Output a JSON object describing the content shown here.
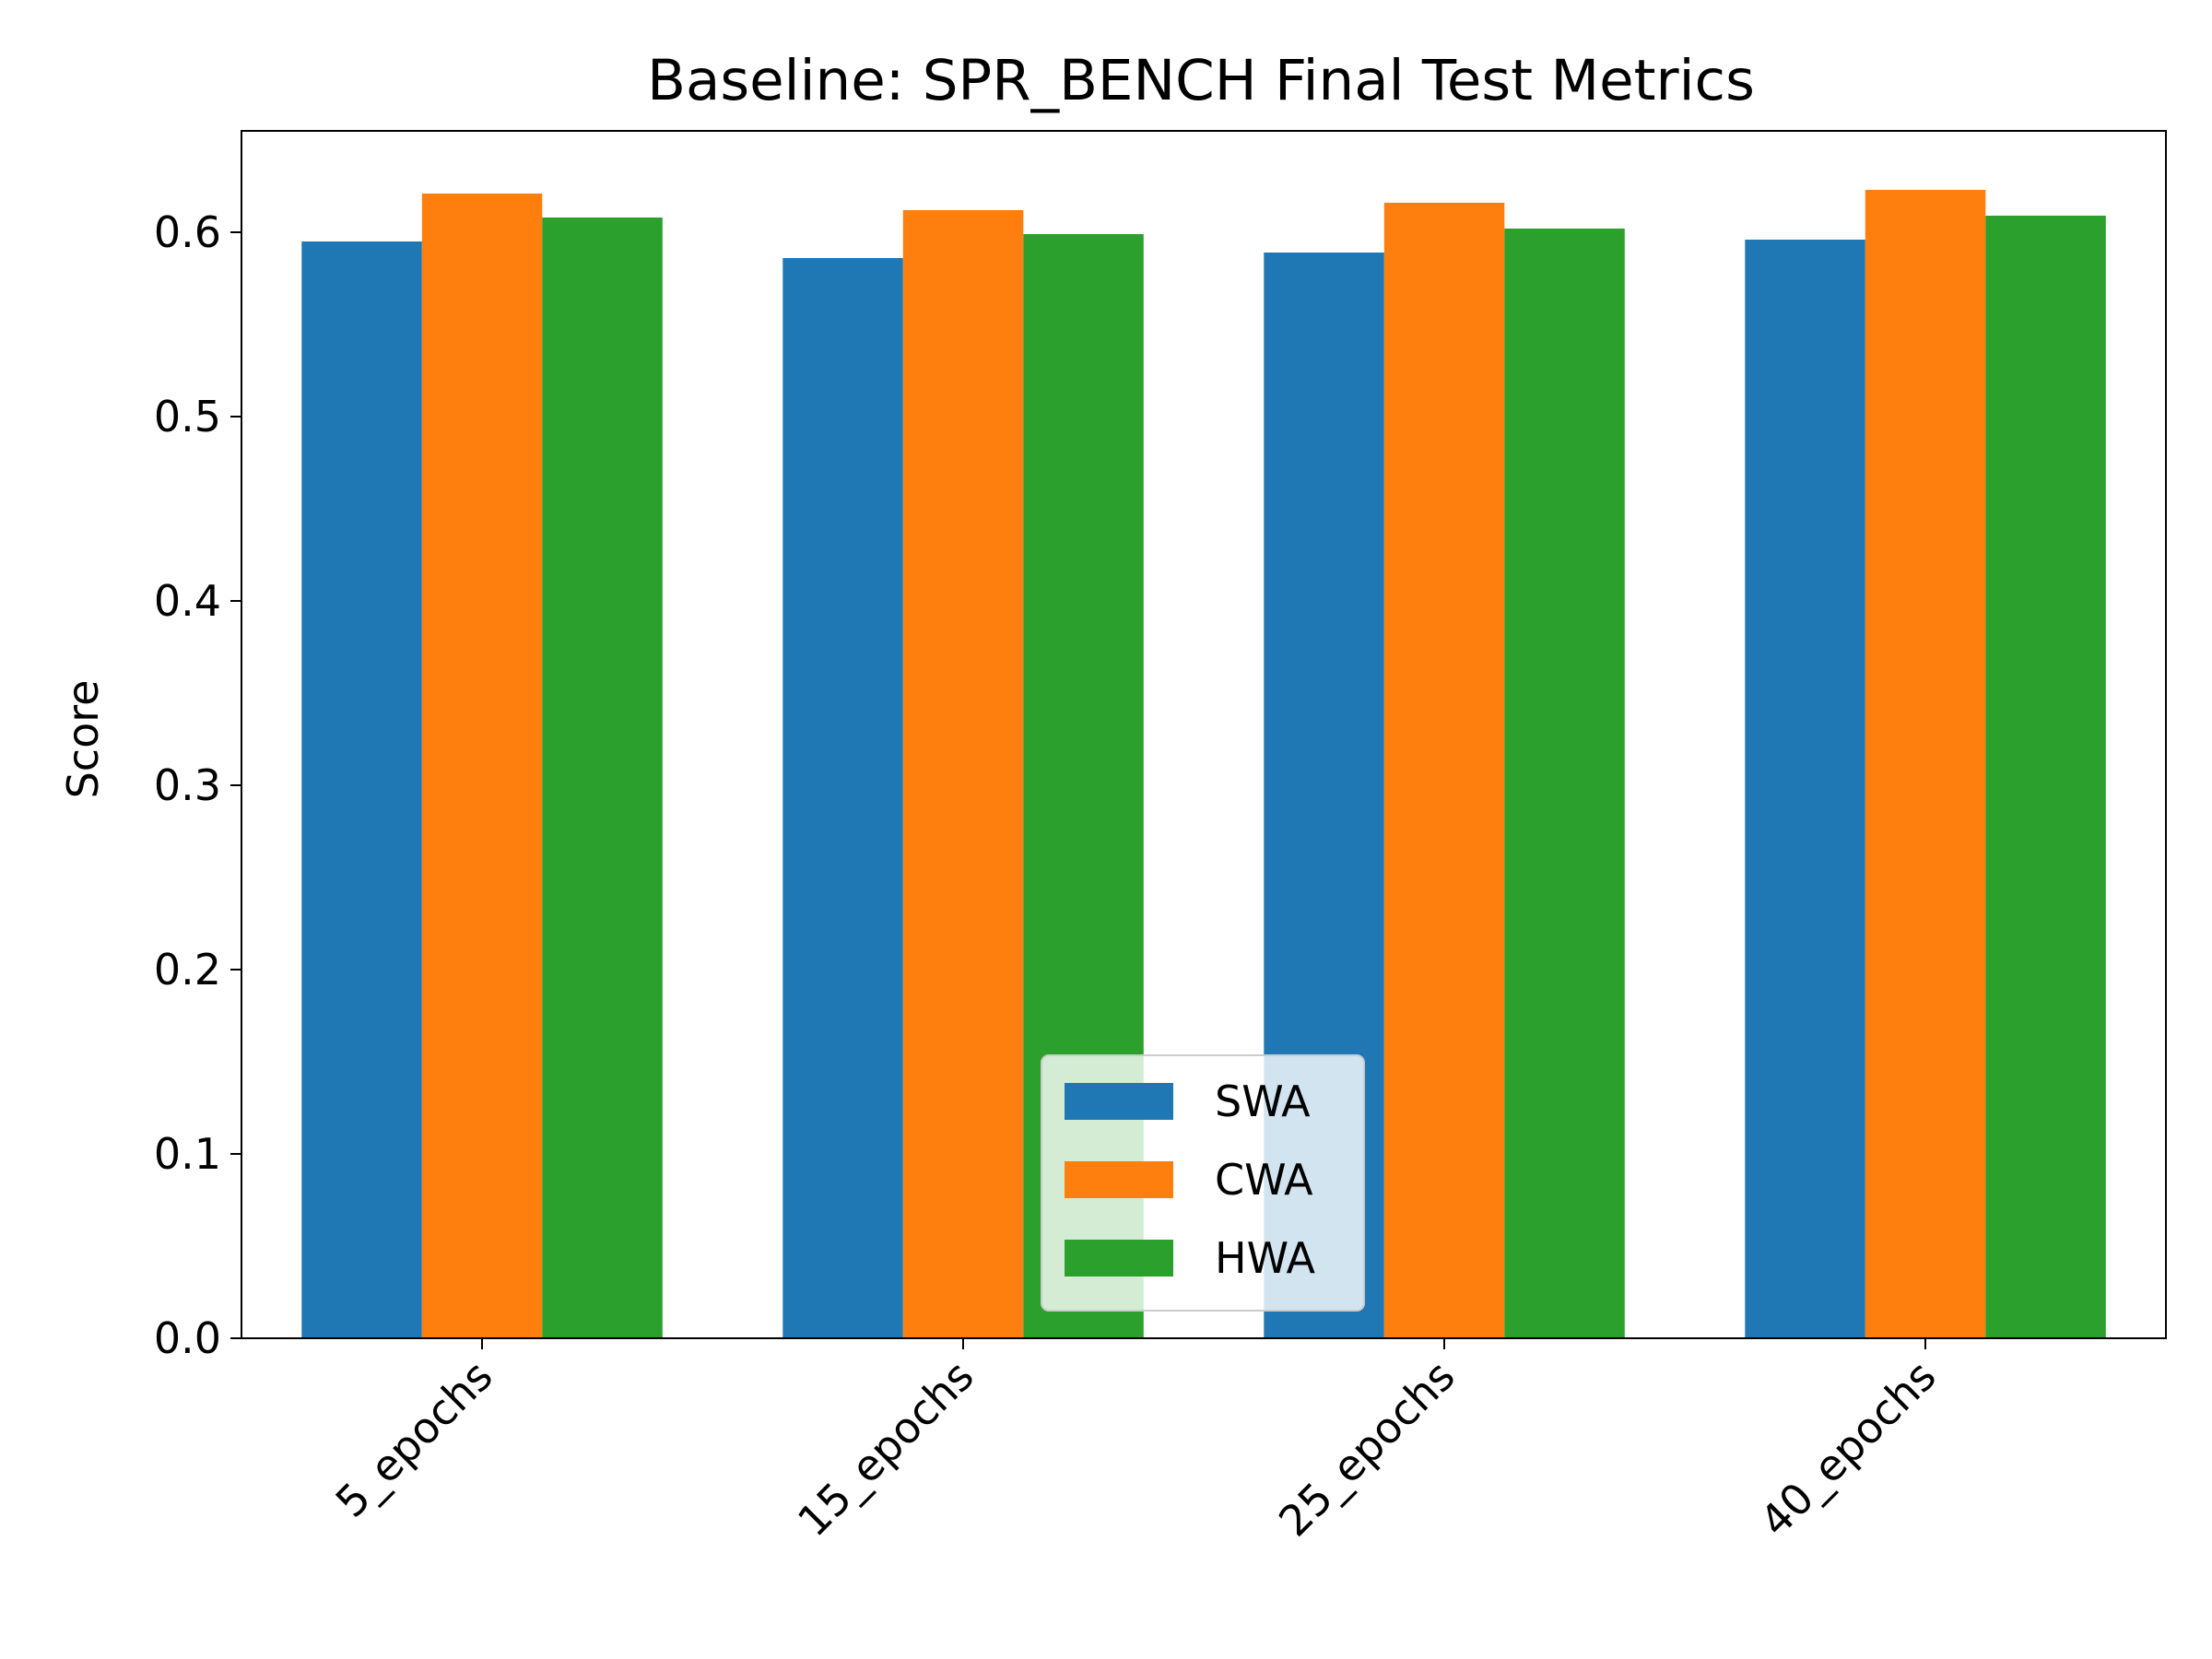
{
  "chart_data": {
    "type": "bar",
    "title": "Baseline: SPR_BENCH Final Test Metrics",
    "xlabel": "",
    "ylabel": "Score",
    "ylim": [
      0,
      0.655
    ],
    "yticks": [
      "0.0",
      "0.1",
      "0.2",
      "0.3",
      "0.4",
      "0.5",
      "0.6"
    ],
    "categories": [
      "5_epochs",
      "15_epochs",
      "25_epochs",
      "40_epochs"
    ],
    "series": [
      {
        "name": "SWA",
        "color": "#1f77b4",
        "values": [
          0.595,
          0.586,
          0.589,
          0.596
        ]
      },
      {
        "name": "CWA",
        "color": "#ff7f0e",
        "values": [
          0.621,
          0.612,
          0.616,
          0.623
        ]
      },
      {
        "name": "HWA",
        "color": "#2ca02c",
        "values": [
          0.608,
          0.599,
          0.602,
          0.609
        ]
      }
    ],
    "legend": {
      "position": "lower center"
    },
    "grid": false
  }
}
